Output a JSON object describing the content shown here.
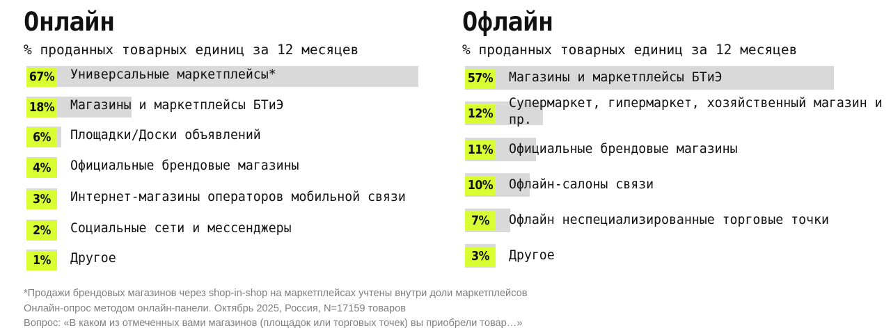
{
  "chart_data": [
    {
      "type": "bar",
      "title": "Онлайн",
      "subtitle": "% проданных товарных единиц за 12 месяцев",
      "unit": "%",
      "xlim": [
        0,
        100
      ],
      "bar_color": "#d9d9d9",
      "accent_color": "#d9ff33",
      "categories": [
        "Универсальные маркетплейсы*",
        "Магазины и маркетплейсы БТиЭ",
        "Площадки/Доски объявлений",
        "Официальные брендовые магазины",
        "Интернет-магазины операторов мобильной связи",
        "Социальные сети и мессенджеры",
        "Другое"
      ],
      "values": [
        67,
        18,
        6,
        4,
        3,
        2,
        1
      ],
      "value_labels": [
        "67%",
        "18%",
        "6%",
        "4%",
        "3%",
        "2%",
        "1%"
      ]
    },
    {
      "type": "bar",
      "title": "Офлайн",
      "subtitle": "% проданных товарных единиц за 12 месяцев",
      "unit": "%",
      "xlim": [
        0,
        100
      ],
      "bar_color": "#d9d9d9",
      "accent_color": "#d9ff33",
      "categories": [
        "Магазины и маркетплейсы БТиЭ",
        "Супермаркет, гипермаркет, хозяйственный магазин и пр.",
        "Официальные брендовые магазины",
        "Офлайн-салоны связи",
        "Офлайн неспециализированные торговые точки",
        "Другое"
      ],
      "values": [
        57,
        12,
        11,
        10,
        7,
        3
      ],
      "value_labels": [
        "57%",
        "12%",
        "11%",
        "10%",
        "7%",
        "3%"
      ]
    }
  ],
  "footnotes": {
    "line1": "*Продажи брендовых магазинов через shop-in-shop на маркетплейсах учтены внутри доли маркетплейсов",
    "line2": "Онлайн-опрос методом онлайн-панели. Октябрь 2025, Россия, N=17159 товаров",
    "line3": "Вопрос: «В каком из отмеченных вами магазинов (площадок или торговых точек) вы приобрели товар…»"
  }
}
